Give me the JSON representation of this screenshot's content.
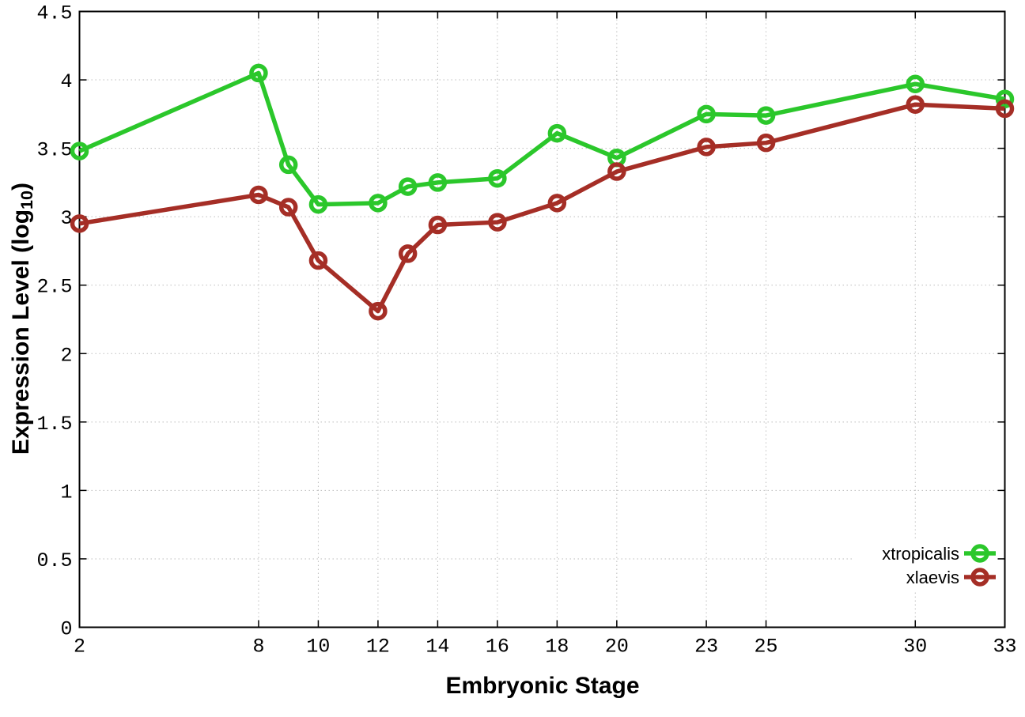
{
  "chart_data": {
    "type": "line",
    "title": "",
    "xlabel": "Embryonic Stage",
    "ylabel": "Expression Level (log10)",
    "ylabel_parts": {
      "pre": "Expression Level (log",
      "sub": "10",
      "post": ")"
    },
    "xlim": [
      2,
      33
    ],
    "ylim": [
      0,
      4.5
    ],
    "grid": true,
    "grid_style": "dotted",
    "legend_position": "inside-right-bottom",
    "x_ticks": [
      2,
      8,
      10,
      12,
      14,
      16,
      18,
      20,
      23,
      25,
      30,
      33
    ],
    "x_tick_labels": [
      "2",
      "8",
      "10",
      "12",
      "14",
      "16",
      "18",
      "20",
      "23",
      "25",
      "30",
      "33"
    ],
    "y_ticks": [
      0,
      0.5,
      1,
      1.5,
      2,
      2.5,
      3,
      3.5,
      4,
      4.5
    ],
    "y_tick_labels": [
      "0",
      "0.5",
      "1",
      "1.5",
      "2",
      "2.5",
      "3",
      "3.5",
      "4",
      "4.5"
    ],
    "x": [
      2,
      8,
      9,
      10,
      12,
      13,
      14,
      16,
      18,
      20,
      23,
      25,
      30,
      33
    ],
    "series": [
      {
        "name": "xtropicalis",
        "color": "#2bc72b",
        "marker": "open-circle",
        "values": [
          3.48,
          4.05,
          3.38,
          3.09,
          3.1,
          3.22,
          3.25,
          3.28,
          3.61,
          3.43,
          3.75,
          3.74,
          3.97,
          3.86
        ]
      },
      {
        "name": "xlaevis",
        "color": "#a52e26",
        "marker": "open-circle",
        "values": [
          2.95,
          3.16,
          3.07,
          2.68,
          2.31,
          2.73,
          2.94,
          2.96,
          3.1,
          3.33,
          3.51,
          3.54,
          3.82,
          3.79
        ]
      }
    ]
  },
  "styles": {
    "background": "#ffffff",
    "axis_color": "#000000",
    "grid_color": "#bdbdbd",
    "text_color": "#000000"
  }
}
